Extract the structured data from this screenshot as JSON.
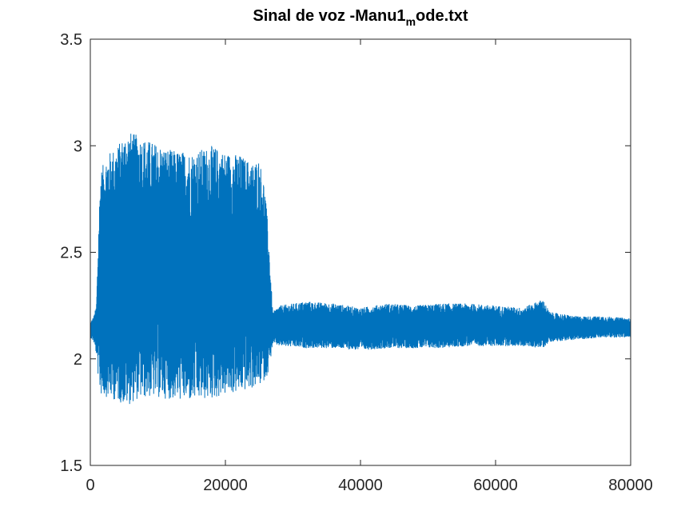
{
  "chart_data": {
    "type": "line",
    "title_main": "Sinal de voz -Manu1",
    "title_subscript": "m",
    "title_tail": "ode.txt",
    "xlabel": "",
    "ylabel": "",
    "xlim": [
      0,
      80000
    ],
    "ylim": [
      1.5,
      3.5
    ],
    "xticks": [
      0,
      20000,
      40000,
      60000,
      80000
    ],
    "xtick_labels": [
      "0",
      "20000",
      "40000",
      "60000",
      "80000"
    ],
    "yticks": [
      1.5,
      2,
      2.5,
      3,
      3.5
    ],
    "ytick_labels": [
      "1.5",
      "2",
      "2.5",
      "3",
      "3.5"
    ],
    "grid": false,
    "series_color": "#0072BD",
    "envelope": {
      "note_units": "sample index vs amplitude",
      "x": [
        0,
        500,
        900,
        1200,
        1500,
        2500,
        4000,
        5500,
        7000,
        9000,
        12000,
        15000,
        18000,
        20000,
        22000,
        24000,
        25000,
        25800,
        26300,
        26700,
        27000,
        28000,
        32000,
        36000,
        40000,
        44000,
        48000,
        52000,
        56000,
        60000,
        64000,
        67000,
        68000,
        72000,
        76000,
        80000
      ],
      "upper": [
        2.17,
        2.2,
        2.25,
        2.6,
        2.88,
        2.96,
        3.0,
        3.07,
        3.05,
        3.02,
        2.98,
        2.97,
        3.0,
        2.97,
        2.96,
        2.92,
        2.94,
        2.82,
        2.62,
        2.4,
        2.22,
        2.25,
        2.27,
        2.26,
        2.24,
        2.26,
        2.25,
        2.26,
        2.26,
        2.25,
        2.24,
        2.28,
        2.22,
        2.2,
        2.2,
        2.19
      ],
      "lower": [
        2.1,
        2.08,
        2.02,
        1.9,
        1.83,
        1.82,
        1.8,
        1.78,
        1.81,
        1.82,
        1.81,
        1.8,
        1.81,
        1.83,
        1.84,
        1.86,
        1.87,
        1.9,
        1.93,
        2.0,
        2.07,
        2.06,
        2.05,
        2.05,
        2.04,
        2.05,
        2.05,
        2.05,
        2.06,
        2.06,
        2.06,
        2.05,
        2.08,
        2.09,
        2.1,
        2.1
      ]
    }
  }
}
